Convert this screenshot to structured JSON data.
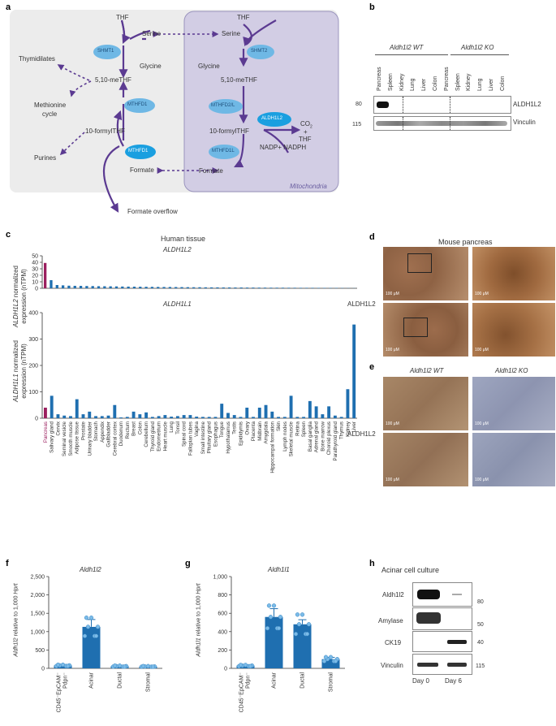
{
  "panel_a": {
    "label": "a",
    "mito_label": "Mitochondria",
    "cyto": {
      "thf": "THF",
      "serine": "Serine",
      "glycine": "Glycine",
      "methylene": "5,10-meTHF",
      "formyl": "10-formylTHF",
      "formate": "Formate",
      "thymidilates": "Thymidilates",
      "methionine": "Methionine",
      "cycle": "cycle",
      "purines": "Purines",
      "overflow": "Formate overflow"
    },
    "mito": {
      "thf": "THF",
      "serine": "Serine",
      "glycine": "Glycine",
      "methylene": "5,10-meTHF",
      "formyl": "10-formylTHF",
      "formate": "Formate",
      "co2": "CO",
      "co2_sub": "2",
      "plus": "+",
      "thf2": "THF",
      "nadp": "NADP+ NADPH"
    },
    "enzymes": {
      "shmt1": "SHMT1",
      "mthfd1_top": "MTHFD1",
      "mthfd1_bottom": "MTHFD1",
      "shmt2": "SHMT2",
      "mthfd2l": "MTHFD2/L",
      "aldh1l2": "ALDH1L2",
      "mthfd1l": "MTHFD1L"
    }
  },
  "panel_b": {
    "label": "b",
    "wt": "Aldh1l2 WT",
    "ko": "Aldh1l2 KO",
    "lanes": [
      "Pancreas",
      "Spleen",
      "Kidney",
      "Lung",
      "Liver",
      "Colon",
      "Pancreas",
      "Spleen",
      "Kidney",
      "Lung",
      "Liver",
      "Colon"
    ],
    "mw": [
      "80",
      "115"
    ],
    "rows": [
      "ALDH1L2",
      "Vinculin"
    ]
  },
  "panel_c": {
    "label": "c",
    "title": "Human tissue",
    "top_gene": "ALDH1L2",
    "top_ylabel": "ALDH1L2 normalized expression (nTPM)",
    "top_ylabel_it": "ALDH1L2",
    "top_ylabel_rest": " normalized",
    "top_ylabel_2": "expression (nTPM)",
    "bottom_gene": "ALDH1L1",
    "bottom_ylabel_it": "ALDH1L1",
    "bottom_ylabel_rest": " normalized",
    "bottom_ylabel_2": "expression (nTPM)",
    "highlight_color": "#9b1f5f",
    "bar_color": "#1f6fb0"
  },
  "chart_data": [
    {
      "type": "bar",
      "title": "ALDH1L2",
      "ylabel": "ALDH1L2 normalized expression (nTPM)",
      "ylim": [
        0,
        50
      ],
      "yticks": [
        0,
        10,
        20,
        30,
        40,
        50
      ],
      "values": [
        39,
        12.5,
        5,
        4.5,
        4,
        3.8,
        3.7,
        3.5,
        3.4,
        3.2,
        3.1,
        3,
        2.9,
        2.7,
        2.6,
        2.5,
        2.4,
        2.3,
        2.2,
        2.1,
        2,
        2,
        1.9,
        1.8,
        1.7,
        1.6,
        1.6,
        1.5,
        1.4,
        1.4,
        1.3,
        1.3,
        1.2,
        1.2,
        1.1,
        1.1,
        1,
        1,
        0.9,
        0.9,
        0.9,
        0.8,
        0.8,
        0.7,
        0.7,
        0.7,
        0.6,
        0.6,
        0.5,
        0.5,
        0.4,
        0.3,
        0.2
      ]
    },
    {
      "type": "bar",
      "title": "ALDH1L1",
      "ylabel": "ALDH1L1 normalized expression (nTPM)",
      "ylim": [
        0,
        400
      ],
      "yticks": [
        0,
        100,
        200,
        300,
        400
      ],
      "categories": [
        "Pancreas",
        "Salivary gland",
        "Cervix",
        "Seminal vesicle",
        "Smooth muscle",
        "Adipose tissue",
        "Prostate",
        "Urinary bladder",
        "Stomach",
        "Appendix",
        "Gallbladder",
        "Cerebral cortex",
        "Duodenum",
        "Rectum",
        "Breast",
        "Colon",
        "Cerebellum",
        "Thyroid gland",
        "Endometrium",
        "Heart muscle",
        "Lung",
        "Tonsil",
        "Spinal cord",
        "Fallopian tubes",
        "Vagina",
        "Small intestine",
        "Pituitary gland",
        "Esophagus",
        "Tongue",
        "Hypothalamus",
        "Testis",
        "Epididymis",
        "Ovary",
        "Placenta",
        "Midbrain",
        "Amygdala",
        "Hippocampal formation",
        "Skin",
        "Lymph nodes",
        "Skeletal muscle",
        "Retina",
        "Spleen",
        "Basal ganglia",
        "Adrenal gland",
        "Bone marrow",
        "Choroid plexus",
        "Parathyroid gland",
        "Thymus",
        "Kidney",
        "Liver"
      ],
      "values": [
        40,
        85,
        15,
        10,
        8,
        72,
        15,
        25,
        8,
        8,
        10,
        50,
        3,
        5,
        25,
        15,
        22,
        5,
        8,
        12,
        6,
        8,
        12,
        12,
        6,
        5,
        5,
        5,
        55,
        20,
        12,
        5,
        40,
        5,
        40,
        50,
        25,
        5,
        5,
        85,
        5,
        5,
        65,
        45,
        15,
        45,
        10,
        5,
        110,
        355
      ]
    },
    {
      "type": "bar",
      "title": "Aldh1l2",
      "ylabel": "Aldh1l2 relative to 1,000 Hprt",
      "ylim": [
        0,
        2500
      ],
      "yticks": [
        0,
        500,
        1000,
        1500,
        2000,
        2500
      ],
      "categories": [
        "CD45⁻EpCAM⁻ Pdpn⁻",
        "Acinar",
        "Ductal",
        "Stromal"
      ],
      "values": [
        80,
        1130,
        60,
        50
      ],
      "errors": [
        25,
        200,
        15,
        10
      ]
    },
    {
      "type": "bar",
      "title": "Aldh1l1",
      "ylabel": "Aldh1l1 relative to 1,000 Hprt",
      "ylim": [
        0,
        1000
      ],
      "yticks": [
        0,
        200,
        400,
        600,
        800,
        1000
      ],
      "categories": [
        "CD45⁻EpCAM⁻ Pdpn⁻",
        "Acinar",
        "Ductal",
        "Stromal"
      ],
      "values": [
        30,
        560,
        480,
        100
      ],
      "errors": [
        10,
        90,
        50,
        20
      ]
    }
  ],
  "panel_d": {
    "label": "d",
    "title": "Mouse pancreas",
    "row_label": "ALDH1L2",
    "scale": "100 μM"
  },
  "panel_e": {
    "label": "e",
    "wt": "Aldh1l2 WT",
    "ko": "Aldh1l2 KO",
    "row_label": "ALDH1L2",
    "scale": "100 μM"
  },
  "panel_f": {
    "label": "f",
    "gene": "Aldh1l2",
    "ylabel_it": "Aldh1l2",
    "ylabel_rest": " relative to 1,000 ",
    "ylabel_it2": "Hprt",
    "yticks": [
      "0",
      "500",
      "1,000",
      "1,500",
      "2,000",
      "2,500"
    ],
    "cats": [
      "CD45⁻EpCAM⁻",
      "Pdpn⁻",
      "Acinar",
      "Ductal",
      "Stromal"
    ]
  },
  "panel_g": {
    "label": "g",
    "gene": "Aldh1l1",
    "ylabel_it": "Aldh1l1",
    "ylabel_rest": " relative to 1,000 ",
    "ylabel_it2": "Hprt",
    "yticks": [
      "0",
      "200",
      "400",
      "600",
      "800",
      "1,000"
    ],
    "cats": [
      "CD45⁻EpCAM⁻",
      "Pdpn⁻",
      "Acinar",
      "Ductal",
      "Stromal"
    ]
  },
  "panel_h": {
    "label": "h",
    "title": "Acinar cell culture",
    "rows": [
      "Aldh1l2",
      "Amylase",
      "CK19",
      "Vinculin"
    ],
    "mw": [
      "80",
      "50",
      "40",
      "115"
    ],
    "days": [
      "Day 0",
      "Day 6"
    ]
  }
}
